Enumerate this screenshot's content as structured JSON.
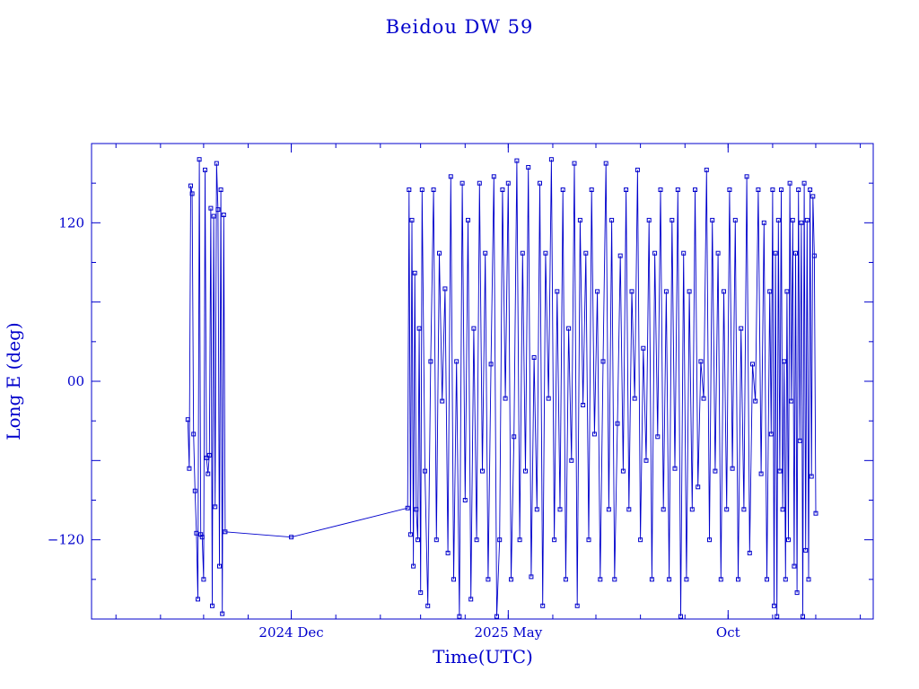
{
  "chart_data": {
    "type": "line",
    "title": "Beidou DW 59",
    "xlabel": "Time(UTC)",
    "ylabel": "Long E (deg)",
    "ylim": [
      -180,
      180
    ],
    "xlim": [
      "2024-07-15",
      "2026-01-10"
    ],
    "x_tick_labels": [
      {
        "date": "2024-12-01",
        "label": "2024 Dec"
      },
      {
        "date": "2025-05-01",
        "label": "2025 May"
      },
      {
        "date": "2025-10-01",
        "label": "Oct"
      }
    ],
    "y_tick_labels": [
      {
        "value": 120,
        "label": "120"
      },
      {
        "value": 0,
        "label": "00"
      },
      {
        "value": -120,
        "label": "−120"
      }
    ],
    "grid": false,
    "color": "#0000cc",
    "marker": "square",
    "series": [
      {
        "points": [
          [
            "2024-09-20",
            -29
          ],
          [
            "2024-09-21",
            -66
          ],
          [
            "2024-09-22",
            148
          ],
          [
            "2024-09-23",
            142
          ],
          [
            "2024-09-24",
            -40
          ],
          [
            "2024-09-25",
            -83
          ],
          [
            "2024-09-26",
            -115
          ],
          [
            "2024-09-27",
            -165
          ],
          [
            "2024-09-28",
            168
          ],
          [
            "2024-09-29",
            -116
          ],
          [
            "2024-09-30",
            -118
          ],
          [
            "2024-10-01",
            -150
          ],
          [
            "2024-10-02",
            160
          ],
          [
            "2024-10-03",
            -58
          ],
          [
            "2024-10-04",
            -70
          ],
          [
            "2024-10-05",
            -56
          ],
          [
            "2024-10-06",
            131
          ],
          [
            "2024-10-07",
            -170
          ],
          [
            "2024-10-08",
            125
          ],
          [
            "2024-10-09",
            -95
          ],
          [
            "2024-10-10",
            165
          ],
          [
            "2024-10-11",
            130
          ],
          [
            "2024-10-12",
            -140
          ],
          [
            "2024-10-13",
            145
          ],
          [
            "2024-10-14",
            -176
          ],
          [
            "2024-10-15",
            126
          ],
          [
            "2024-10-16",
            -114
          ],
          [
            "2024-12-01",
            -118
          ],
          [
            "2025-02-20",
            -96
          ],
          [
            "2025-02-21",
            145
          ],
          [
            "2025-02-22",
            -116
          ],
          [
            "2025-02-23",
            122
          ],
          [
            "2025-02-24",
            -140
          ],
          [
            "2025-02-25",
            82
          ],
          [
            "2025-02-26",
            -97
          ],
          [
            "2025-02-27",
            -120
          ],
          [
            "2025-02-28",
            40
          ],
          [
            "2025-03-01",
            -160
          ],
          [
            "2025-03-02",
            145
          ],
          [
            "2025-03-04",
            -68
          ],
          [
            "2025-03-06",
            -170
          ],
          [
            "2025-03-08",
            15
          ],
          [
            "2025-03-10",
            145
          ],
          [
            "2025-03-12",
            -120
          ],
          [
            "2025-03-14",
            97
          ],
          [
            "2025-03-16",
            -15
          ],
          [
            "2025-03-18",
            70
          ],
          [
            "2025-03-20",
            -130
          ],
          [
            "2025-03-22",
            155
          ],
          [
            "2025-03-24",
            -150
          ],
          [
            "2025-03-26",
            15
          ],
          [
            "2025-03-28",
            -178
          ],
          [
            "2025-03-30",
            150
          ],
          [
            "2025-04-01",
            -90
          ],
          [
            "2025-04-03",
            122
          ],
          [
            "2025-04-05",
            -165
          ],
          [
            "2025-04-07",
            40
          ],
          [
            "2025-04-09",
            -120
          ],
          [
            "2025-04-11",
            150
          ],
          [
            "2025-04-13",
            -68
          ],
          [
            "2025-04-15",
            97
          ],
          [
            "2025-04-17",
            -150
          ],
          [
            "2025-04-19",
            13
          ],
          [
            "2025-04-21",
            155
          ],
          [
            "2025-04-23",
            -178
          ],
          [
            "2025-04-25",
            -120
          ],
          [
            "2025-04-27",
            145
          ],
          [
            "2025-04-29",
            -13
          ],
          [
            "2025-05-01",
            150
          ],
          [
            "2025-05-03",
            -150
          ],
          [
            "2025-05-05",
            -42
          ],
          [
            "2025-05-07",
            167
          ],
          [
            "2025-05-09",
            -120
          ],
          [
            "2025-05-11",
            97
          ],
          [
            "2025-05-13",
            -68
          ],
          [
            "2025-05-15",
            162
          ],
          [
            "2025-05-17",
            -148
          ],
          [
            "2025-05-19",
            18
          ],
          [
            "2025-05-21",
            -97
          ],
          [
            "2025-05-23",
            150
          ],
          [
            "2025-05-25",
            -170
          ],
          [
            "2025-05-27",
            97
          ],
          [
            "2025-05-29",
            -13
          ],
          [
            "2025-05-31",
            168
          ],
          [
            "2025-06-02",
            -120
          ],
          [
            "2025-06-04",
            68
          ],
          [
            "2025-06-06",
            -97
          ],
          [
            "2025-06-08",
            145
          ],
          [
            "2025-06-10",
            -150
          ],
          [
            "2025-06-12",
            40
          ],
          [
            "2025-06-14",
            -60
          ],
          [
            "2025-06-16",
            165
          ],
          [
            "2025-06-18",
            -170
          ],
          [
            "2025-06-20",
            122
          ],
          [
            "2025-06-22",
            -18
          ],
          [
            "2025-06-24",
            97
          ],
          [
            "2025-06-26",
            -120
          ],
          [
            "2025-06-28",
            145
          ],
          [
            "2025-06-30",
            -40
          ],
          [
            "2025-07-02",
            68
          ],
          [
            "2025-07-04",
            -150
          ],
          [
            "2025-07-06",
            15
          ],
          [
            "2025-07-08",
            165
          ],
          [
            "2025-07-10",
            -97
          ],
          [
            "2025-07-12",
            122
          ],
          [
            "2025-07-14",
            -150
          ],
          [
            "2025-07-16",
            -32
          ],
          [
            "2025-07-18",
            95
          ],
          [
            "2025-07-20",
            -68
          ],
          [
            "2025-07-22",
            145
          ],
          [
            "2025-07-24",
            -97
          ],
          [
            "2025-07-26",
            68
          ],
          [
            "2025-07-28",
            -13
          ],
          [
            "2025-07-30",
            160
          ],
          [
            "2025-08-01",
            -120
          ],
          [
            "2025-08-03",
            25
          ],
          [
            "2025-08-05",
            -60
          ],
          [
            "2025-08-07",
            122
          ],
          [
            "2025-08-09",
            -150
          ],
          [
            "2025-08-11",
            97
          ],
          [
            "2025-08-13",
            -42
          ],
          [
            "2025-08-15",
            145
          ],
          [
            "2025-08-17",
            -97
          ],
          [
            "2025-08-19",
            68
          ],
          [
            "2025-08-21",
            -150
          ],
          [
            "2025-08-23",
            122
          ],
          [
            "2025-08-25",
            -66
          ],
          [
            "2025-08-27",
            145
          ],
          [
            "2025-08-29",
            -178
          ],
          [
            "2025-08-31",
            97
          ],
          [
            "2025-09-02",
            -150
          ],
          [
            "2025-09-04",
            68
          ],
          [
            "2025-09-06",
            -97
          ],
          [
            "2025-09-08",
            145
          ],
          [
            "2025-09-10",
            -80
          ],
          [
            "2025-09-12",
            15
          ],
          [
            "2025-09-14",
            -13
          ],
          [
            "2025-09-16",
            160
          ],
          [
            "2025-09-18",
            -120
          ],
          [
            "2025-09-20",
            122
          ],
          [
            "2025-09-22",
            -68
          ],
          [
            "2025-09-24",
            97
          ],
          [
            "2025-09-26",
            -150
          ],
          [
            "2025-09-28",
            68
          ],
          [
            "2025-09-30",
            -97
          ],
          [
            "2025-10-02",
            145
          ],
          [
            "2025-10-04",
            -66
          ],
          [
            "2025-10-06",
            122
          ],
          [
            "2025-10-08",
            -150
          ],
          [
            "2025-10-10",
            40
          ],
          [
            "2025-10-12",
            -97
          ],
          [
            "2025-10-14",
            155
          ],
          [
            "2025-10-16",
            -130
          ],
          [
            "2025-10-18",
            13
          ],
          [
            "2025-10-20",
            -15
          ],
          [
            "2025-10-22",
            145
          ],
          [
            "2025-10-24",
            -70
          ],
          [
            "2025-10-26",
            120
          ],
          [
            "2025-10-28",
            -150
          ],
          [
            "2025-10-30",
            68
          ],
          [
            "2025-10-31",
            -40
          ],
          [
            "2025-11-01",
            145
          ],
          [
            "2025-11-02",
            -170
          ],
          [
            "2025-11-03",
            97
          ],
          [
            "2025-11-04",
            -178
          ],
          [
            "2025-11-05",
            122
          ],
          [
            "2025-11-06",
            -68
          ],
          [
            "2025-11-07",
            145
          ],
          [
            "2025-11-08",
            -97
          ],
          [
            "2025-11-09",
            15
          ],
          [
            "2025-11-10",
            -150
          ],
          [
            "2025-11-11",
            68
          ],
          [
            "2025-11-12",
            -120
          ],
          [
            "2025-11-13",
            150
          ],
          [
            "2025-11-14",
            -15
          ],
          [
            "2025-11-15",
            122
          ],
          [
            "2025-11-16",
            -140
          ],
          [
            "2025-11-17",
            97
          ],
          [
            "2025-11-18",
            -160
          ],
          [
            "2025-11-19",
            145
          ],
          [
            "2025-11-20",
            -45
          ],
          [
            "2025-11-21",
            120
          ],
          [
            "2025-11-22",
            -178
          ],
          [
            "2025-11-23",
            150
          ],
          [
            "2025-11-24",
            -128
          ],
          [
            "2025-11-25",
            122
          ],
          [
            "2025-11-26",
            -150
          ],
          [
            "2025-11-27",
            145
          ],
          [
            "2025-11-28",
            -72
          ],
          [
            "2025-11-29",
            140
          ],
          [
            "2025-11-30",
            95
          ],
          [
            "2025-12-01",
            -100
          ]
        ]
      }
    ]
  }
}
